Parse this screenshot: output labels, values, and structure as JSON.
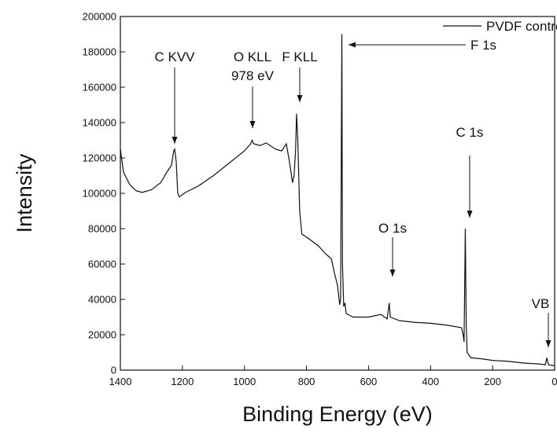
{
  "chart_data": {
    "type": "line",
    "x_label": "Binding Energy (eV)",
    "y_label": "Intensity",
    "xlim": [
      1400,
      0
    ],
    "ylim": [
      0,
      200000
    ],
    "xticks": [
      1400,
      1200,
      1000,
      800,
      600,
      400,
      200,
      0
    ],
    "yticks": [
      0,
      20000,
      40000,
      60000,
      80000,
      100000,
      120000,
      140000,
      160000,
      180000,
      200000
    ],
    "legend": "top-right",
    "annotations": [
      "C KVV",
      "O KLL",
      "978 eV",
      "F KLL",
      "F 1s",
      "O 1s",
      "C 1s",
      "VB"
    ],
    "x": [
      1400,
      1390,
      1370,
      1350,
      1330,
      1300,
      1270,
      1250,
      1235,
      1228,
      1225,
      1220,
      1215,
      1210,
      1190,
      1150,
      1100,
      1050,
      1000,
      980,
      975,
      970,
      950,
      930,
      900,
      880,
      865,
      855,
      845,
      840,
      835,
      832,
      828,
      822,
      815,
      790,
      760,
      740,
      720,
      710,
      700,
      693,
      690,
      686,
      684,
      680,
      676,
      672,
      650,
      600,
      560,
      540,
      533,
      530,
      500,
      450,
      400,
      350,
      300,
      295,
      292,
      288,
      285,
      282,
      270,
      240,
      200,
      150,
      100,
      50,
      30,
      25,
      20,
      0
    ],
    "series": [
      {
        "name": "PVDF control",
        "color": "#111111",
        "values": [
          125000,
          112000,
          105000,
          101500,
          100500,
          102000,
          106000,
          112000,
          116000,
          124000,
          125000,
          118000,
          100000,
          98000,
          100500,
          104000,
          110000,
          117000,
          124000,
          128000,
          130000,
          128000,
          127000,
          128500,
          125000,
          124000,
          128000,
          118000,
          106000,
          110000,
          125000,
          145000,
          130000,
          90000,
          77000,
          74000,
          70000,
          66000,
          63000,
          55000,
          48000,
          37000,
          40000,
          190000,
          60000,
          36000,
          38000,
          32000,
          30000,
          30000,
          31500,
          29000,
          38000,
          30000,
          28000,
          27000,
          26500,
          25500,
          24000,
          20000,
          16000,
          80000,
          25000,
          10000,
          7000,
          6500,
          5500,
          5000,
          4000,
          3500,
          3000,
          7000,
          3000,
          2500
        ]
      }
    ]
  }
}
